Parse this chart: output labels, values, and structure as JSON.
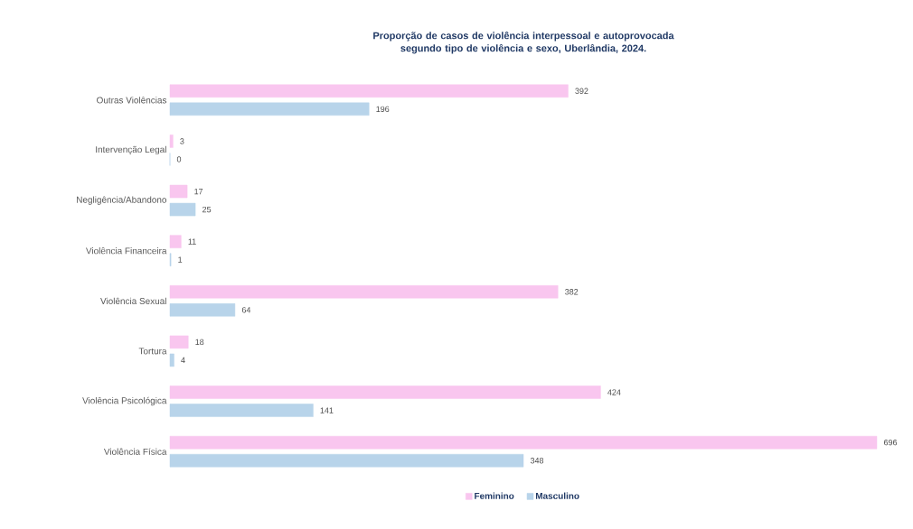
{
  "chart_data": {
    "type": "bar",
    "orientation": "horizontal",
    "title": "Proporção de casos de violência interpessoal e autoprovocada segundo tipo de violência e sexo, Uberlândia, 2024.",
    "categories": [
      "Outras Violências",
      "Intervenção Legal",
      "Negligência/Abandono",
      "Violência Financeira",
      "Violência Sexual",
      "Tortura",
      "Violência Psicológica",
      "Violência Física"
    ],
    "series": [
      {
        "name": "Feminino",
        "color": "#f9c6ef",
        "values": [
          392,
          3,
          17,
          11,
          382,
          18,
          424,
          696
        ]
      },
      {
        "name": "Masculino",
        "color": "#b8d4ea",
        "values": [
          196,
          0,
          25,
          1,
          64,
          4,
          141,
          348
        ]
      }
    ],
    "data_labels": true,
    "legend": "bottom"
  }
}
